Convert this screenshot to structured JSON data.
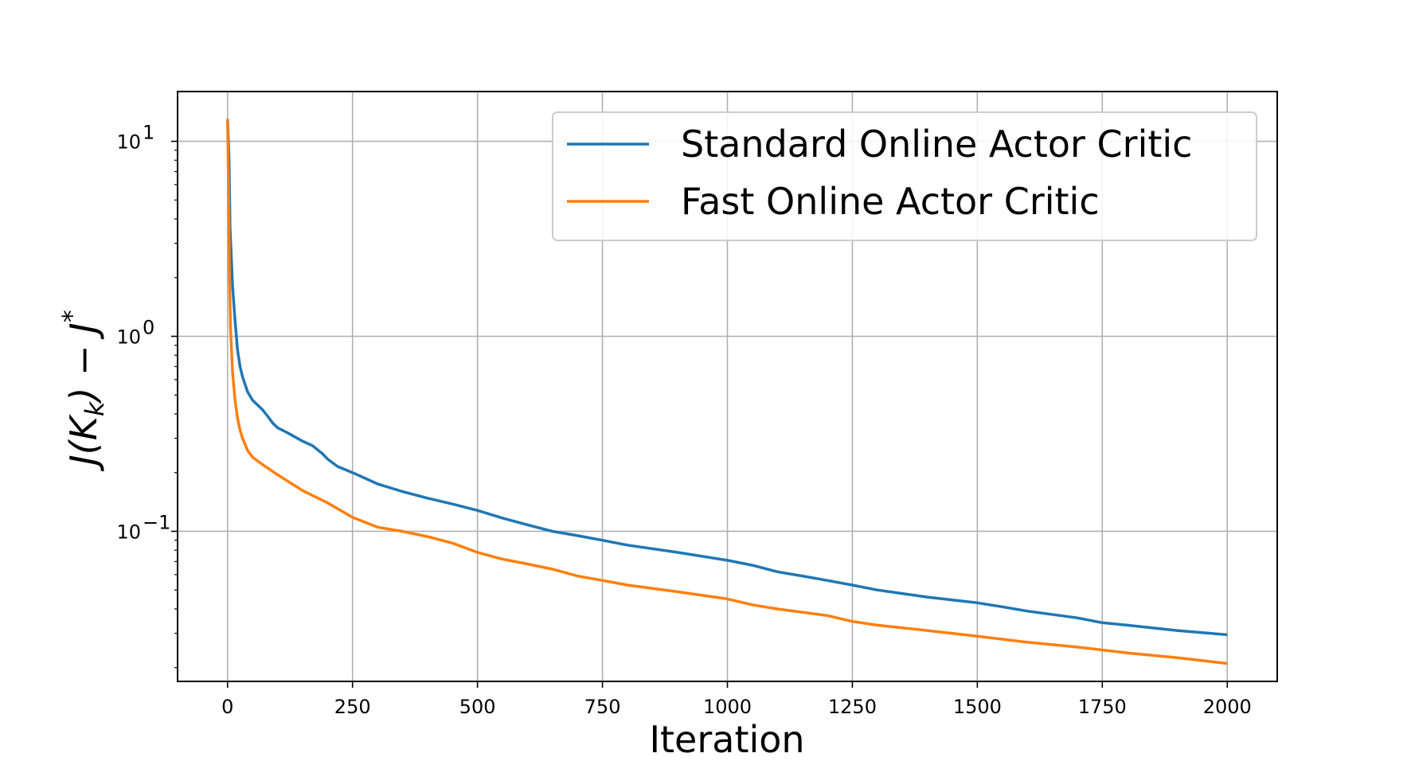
{
  "chart_data": {
    "type": "line",
    "xlabel": "Iteration",
    "ylabel_main": "J(K",
    "ylabel_sub": "k",
    "ylabel_rest": ") − J",
    "ylabel_sup": "*",
    "yscale": "log",
    "xlim": [
      -100,
      2100
    ],
    "ylim": [
      0.017,
      18
    ],
    "x_ticks": [
      0,
      250,
      500,
      750,
      1000,
      1250,
      1500,
      1750,
      2000
    ],
    "x_tick_labels": [
      "0",
      "250",
      "500",
      "750",
      "1000",
      "1250",
      "1500",
      "1750",
      "2000"
    ],
    "y_ticks": [
      10,
      1,
      0.1
    ],
    "y_tick_base": "10",
    "y_tick_exps": [
      "1",
      "0",
      "−1"
    ],
    "grid": true,
    "legend_position": "top-right",
    "series": [
      {
        "name": "Standard Online Actor Critic",
        "color": "#1f77b4",
        "points": [
          [
            0,
            13
          ],
          [
            3,
            8
          ],
          [
            5,
            3.6
          ],
          [
            10,
            1.8
          ],
          [
            15,
            1.2
          ],
          [
            20,
            0.85
          ],
          [
            25,
            0.7
          ],
          [
            30,
            0.62
          ],
          [
            40,
            0.52
          ],
          [
            50,
            0.47
          ],
          [
            70,
            0.42
          ],
          [
            80,
            0.39
          ],
          [
            90,
            0.36
          ],
          [
            100,
            0.34
          ],
          [
            120,
            0.32
          ],
          [
            150,
            0.29
          ],
          [
            170,
            0.275
          ],
          [
            190,
            0.25
          ],
          [
            200,
            0.235
          ],
          [
            220,
            0.215
          ],
          [
            250,
            0.2
          ],
          [
            300,
            0.175
          ],
          [
            350,
            0.16
          ],
          [
            400,
            0.148
          ],
          [
            450,
            0.138
          ],
          [
            500,
            0.128
          ],
          [
            550,
            0.117
          ],
          [
            600,
            0.108
          ],
          [
            650,
            0.1
          ],
          [
            700,
            0.095
          ],
          [
            750,
            0.09
          ],
          [
            800,
            0.085
          ],
          [
            900,
            0.078
          ],
          [
            1000,
            0.071
          ],
          [
            1050,
            0.067
          ],
          [
            1100,
            0.062
          ],
          [
            1150,
            0.059
          ],
          [
            1200,
            0.056
          ],
          [
            1250,
            0.053
          ],
          [
            1300,
            0.05
          ],
          [
            1400,
            0.046
          ],
          [
            1500,
            0.043
          ],
          [
            1550,
            0.041
          ],
          [
            1600,
            0.039
          ],
          [
            1700,
            0.036
          ],
          [
            1750,
            0.034
          ],
          [
            1800,
            0.033
          ],
          [
            1900,
            0.031
          ],
          [
            2000,
            0.0295
          ]
        ]
      },
      {
        "name": "Fast Online Actor Critic",
        "color": "#ff7f0e",
        "points": [
          [
            0,
            13
          ],
          [
            2,
            6
          ],
          [
            4,
            2
          ],
          [
            6,
            1.1
          ],
          [
            10,
            0.65
          ],
          [
            15,
            0.47
          ],
          [
            20,
            0.38
          ],
          [
            25,
            0.33
          ],
          [
            30,
            0.3
          ],
          [
            40,
            0.26
          ],
          [
            50,
            0.24
          ],
          [
            70,
            0.22
          ],
          [
            100,
            0.195
          ],
          [
            150,
            0.162
          ],
          [
            200,
            0.14
          ],
          [
            250,
            0.118
          ],
          [
            300,
            0.105
          ],
          [
            350,
            0.1
          ],
          [
            400,
            0.094
          ],
          [
            450,
            0.087
          ],
          [
            500,
            0.078
          ],
          [
            550,
            0.072
          ],
          [
            600,
            0.068
          ],
          [
            650,
            0.064
          ],
          [
            700,
            0.059
          ],
          [
            750,
            0.056
          ],
          [
            800,
            0.053
          ],
          [
            900,
            0.049
          ],
          [
            1000,
            0.045
          ],
          [
            1050,
            0.042
          ],
          [
            1100,
            0.04
          ],
          [
            1200,
            0.037
          ],
          [
            1250,
            0.0345
          ],
          [
            1300,
            0.033
          ],
          [
            1400,
            0.031
          ],
          [
            1500,
            0.029
          ],
          [
            1600,
            0.027
          ],
          [
            1700,
            0.0255
          ],
          [
            1800,
            0.0238
          ],
          [
            1900,
            0.0225
          ],
          [
            2000,
            0.021
          ]
        ]
      }
    ]
  }
}
